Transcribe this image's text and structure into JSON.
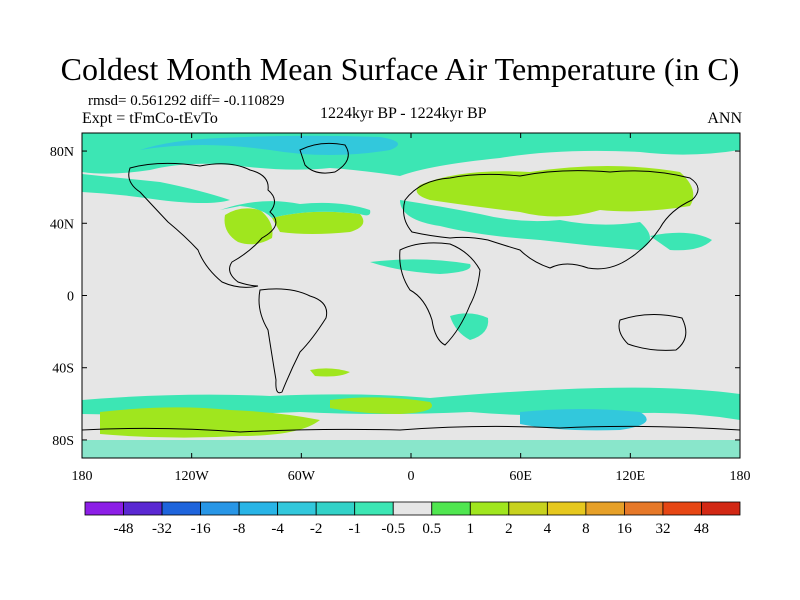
{
  "title": "Coldest Month Mean Surface Air Temperature (in C)",
  "stats": "rmsd= 0.561292 diff= -0.110829",
  "experiment": "Expt = tFmCo-tEvTo",
  "period": "1224kyr BP - 1224kyr BP",
  "season": "ANN",
  "map": {
    "projection": "cylindrical equidistant",
    "lon_range": [
      -180,
      180
    ],
    "lat_range": [
      -90,
      90
    ],
    "lon_ticks": [
      "180",
      "120W",
      "60W",
      "0",
      "60E",
      "120E",
      "180"
    ],
    "lat_ticks": [
      "80N",
      "40N",
      "0",
      "40S",
      "80S"
    ],
    "background_color": "#e6e6e6",
    "coastline_color": "#000000"
  },
  "colorbar": {
    "labels": [
      "-48",
      "-32",
      "-16",
      "-8",
      "-4",
      "-2",
      "-1",
      "-0.5",
      "0.5",
      "1",
      "2",
      "4",
      "8",
      "16",
      "32",
      "48"
    ],
    "colors": [
      "#8c1ee6",
      "#5a28d2",
      "#1e64dc",
      "#2896e6",
      "#28b4e6",
      "#32c8dc",
      "#32d2c8",
      "#3ce6b4",
      "#e6e6e6",
      "#50e650",
      "#a0e61e",
      "#c8d21e",
      "#e6c81e",
      "#e6a028",
      "#e67828",
      "#e64614",
      "#d22814"
    ]
  }
}
